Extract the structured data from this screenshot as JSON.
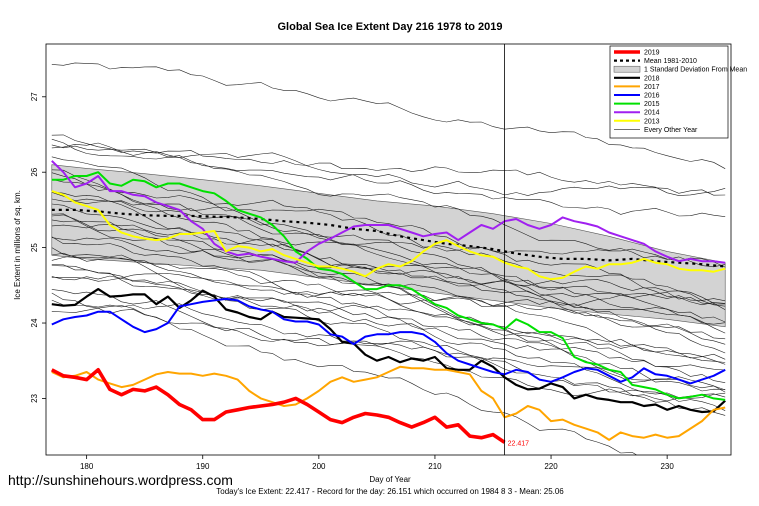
{
  "chart_data": {
    "type": "line",
    "title": "Global Sea Ice Extent Day 216 1978 to 2019",
    "xlabel": "Day of Year",
    "ylabel": "Ice Extent in millions of sq. km.",
    "xlim": [
      176.5,
      235.5
    ],
    "ylim": [
      22.25,
      27.7
    ],
    "x_ticks": [
      180,
      190,
      200,
      210,
      220,
      230
    ],
    "y_ticks": [
      23,
      24,
      25,
      26,
      27
    ],
    "vline_x": 216,
    "annotation": {
      "text": "22.417",
      "x": 216,
      "y": 22.417
    },
    "legend_position": "top-right",
    "band": {
      "name": "1 Standard Deviation From Mean",
      "color": "#d3d3d3",
      "x": [
        177,
        180,
        185,
        190,
        195,
        200,
        205,
        210,
        215,
        220,
        225,
        230,
        235
      ],
      "upper": [
        26.1,
        26.05,
        25.98,
        25.9,
        25.82,
        25.72,
        25.62,
        25.55,
        25.45,
        25.32,
        25.15,
        24.95,
        24.8
      ],
      "lower": [
        24.9,
        24.85,
        24.8,
        24.75,
        24.7,
        24.6,
        24.5,
        24.4,
        24.3,
        24.2,
        24.12,
        24.05,
        23.95
      ]
    },
    "series": [
      {
        "name": "Mean 1981-2010",
        "color": "#000000",
        "dashed": true,
        "width": 2.2,
        "x": [
          177,
          179,
          181,
          183,
          185,
          187,
          189,
          191,
          193,
          195,
          197,
          199,
          201,
          203,
          205,
          207,
          209,
          211,
          213,
          215,
          217,
          219,
          221,
          223,
          225,
          227,
          229,
          231,
          233,
          235
        ],
        "values": [
          25.5,
          25.5,
          25.48,
          25.45,
          25.43,
          25.42,
          25.42,
          25.41,
          25.4,
          25.38,
          25.35,
          25.33,
          25.3,
          25.25,
          25.22,
          25.15,
          25.1,
          25.05,
          25.02,
          24.98,
          24.92,
          24.88,
          24.85,
          24.85,
          24.83,
          24.85,
          24.82,
          24.8,
          24.78,
          24.75
        ]
      },
      {
        "name": "2018",
        "color": "#000000",
        "width": 2.2,
        "x": [
          177,
          178,
          179,
          180,
          181,
          182,
          183,
          184,
          185,
          186,
          187,
          188,
          189,
          190,
          191,
          192,
          193,
          194,
          195,
          196,
          197,
          198,
          199,
          200,
          201,
          202,
          203,
          204,
          205,
          206,
          207,
          208,
          209,
          210,
          211,
          212,
          213,
          214,
          215,
          216,
          217,
          218,
          219,
          220,
          221,
          222,
          223,
          224,
          225,
          226,
          227,
          228,
          229,
          230,
          231,
          232,
          233,
          234,
          235
        ],
        "values": [
          24.25,
          24.23,
          24.24,
          24.35,
          24.45,
          24.35,
          24.36,
          24.38,
          24.38,
          24.25,
          24.35,
          24.2,
          24.3,
          24.43,
          24.35,
          24.18,
          24.14,
          24.08,
          24.05,
          24.15,
          24.08,
          24.07,
          24.06,
          24.05,
          23.92,
          23.75,
          23.73,
          23.58,
          23.5,
          23.55,
          23.48,
          23.53,
          23.5,
          23.55,
          23.4,
          23.38,
          23.38,
          23.5,
          23.42,
          23.28,
          23.18,
          23.12,
          23.13,
          23.2,
          23.15,
          23.0,
          23.05,
          23.0,
          22.98,
          22.95,
          22.95,
          22.9,
          22.92,
          22.85,
          22.9,
          22.85,
          22.82,
          22.83,
          22.97
        ]
      },
      {
        "name": "2017",
        "color": "#ffa500",
        "width": 2,
        "x": [
          177,
          178,
          179,
          180,
          181,
          182,
          183,
          184,
          185,
          186,
          187,
          188,
          189,
          190,
          191,
          192,
          193,
          194,
          195,
          196,
          197,
          198,
          199,
          200,
          201,
          202,
          203,
          204,
          205,
          206,
          207,
          208,
          209,
          210,
          211,
          212,
          213,
          214,
          215,
          216,
          217,
          218,
          219,
          220,
          221,
          222,
          223,
          224,
          225,
          226,
          227,
          228,
          229,
          230,
          231,
          232,
          233,
          234,
          235
        ],
        "values": [
          23.35,
          23.28,
          23.3,
          23.35,
          23.25,
          23.2,
          23.15,
          23.18,
          23.25,
          23.32,
          23.35,
          23.33,
          23.33,
          23.3,
          23.33,
          23.3,
          23.25,
          23.1,
          23.0,
          22.95,
          22.9,
          22.92,
          23.0,
          23.1,
          23.22,
          23.28,
          23.22,
          23.25,
          23.28,
          23.35,
          23.42,
          23.4,
          23.4,
          23.38,
          23.38,
          23.35,
          23.32,
          23.1,
          23.0,
          22.75,
          22.8,
          22.9,
          22.85,
          22.7,
          22.72,
          22.65,
          22.6,
          22.55,
          22.45,
          22.55,
          22.5,
          22.48,
          22.52,
          22.48,
          22.5,
          22.6,
          22.7,
          22.85,
          22.88
        ]
      },
      {
        "name": "2016",
        "color": "#0000ff",
        "width": 2,
        "x": [
          177,
          178,
          179,
          180,
          181,
          182,
          183,
          184,
          185,
          186,
          187,
          188,
          189,
          190,
          191,
          192,
          193,
          194,
          195,
          196,
          197,
          198,
          199,
          200,
          201,
          202,
          203,
          204,
          205,
          206,
          207,
          208,
          209,
          210,
          211,
          212,
          213,
          214,
          215,
          216,
          217,
          218,
          219,
          220,
          221,
          222,
          223,
          224,
          225,
          226,
          227,
          228,
          229,
          230,
          231,
          232,
          233,
          234,
          235
        ],
        "values": [
          23.98,
          24.05,
          24.08,
          24.1,
          24.15,
          24.15,
          24.05,
          23.95,
          23.88,
          23.92,
          24.0,
          24.22,
          24.25,
          24.28,
          24.3,
          24.32,
          24.3,
          24.22,
          24.18,
          24.15,
          24.05,
          24.02,
          24.02,
          23.98,
          23.85,
          23.82,
          23.72,
          23.82,
          23.85,
          23.85,
          23.88,
          23.88,
          23.85,
          23.75,
          23.6,
          23.5,
          23.45,
          23.4,
          23.35,
          23.32,
          23.38,
          23.35,
          23.25,
          23.22,
          23.28,
          23.35,
          23.4,
          23.38,
          23.3,
          23.22,
          23.28,
          23.4,
          23.32,
          23.3,
          23.25,
          23.2,
          23.25,
          23.3,
          23.38
        ]
      },
      {
        "name": "2015",
        "color": "#00e000",
        "width": 2,
        "x": [
          177,
          178,
          179,
          180,
          181,
          182,
          183,
          184,
          185,
          186,
          187,
          188,
          189,
          190,
          191,
          192,
          193,
          194,
          195,
          196,
          197,
          198,
          199,
          200,
          201,
          202,
          203,
          204,
          205,
          206,
          207,
          208,
          209,
          210,
          211,
          212,
          213,
          214,
          215,
          216,
          217,
          218,
          219,
          220,
          221,
          222,
          223,
          224,
          225,
          226,
          227,
          228,
          229,
          230,
          231,
          232,
          233,
          234,
          235
        ],
        "values": [
          25.9,
          25.9,
          25.95,
          25.95,
          26.0,
          25.85,
          25.82,
          25.9,
          25.88,
          25.8,
          25.85,
          25.85,
          25.8,
          25.75,
          25.72,
          25.62,
          25.5,
          25.45,
          25.4,
          25.3,
          25.15,
          24.95,
          24.85,
          24.72,
          24.7,
          24.65,
          24.55,
          24.45,
          24.45,
          24.5,
          24.5,
          24.45,
          24.35,
          24.25,
          24.2,
          24.1,
          24.05,
          24.0,
          23.98,
          23.92,
          24.05,
          23.98,
          23.88,
          23.88,
          23.8,
          23.55,
          23.48,
          23.45,
          23.38,
          23.35,
          23.18,
          23.15,
          23.12,
          23.05,
          23.0,
          23.02,
          23.05,
          23.0,
          22.98
        ]
      },
      {
        "name": "2014",
        "color": "#a020f0",
        "width": 2,
        "x": [
          177,
          178,
          179,
          180,
          181,
          182,
          183,
          184,
          185,
          186,
          187,
          188,
          189,
          190,
          191,
          192,
          193,
          194,
          195,
          196,
          197,
          198,
          199,
          200,
          201,
          202,
          203,
          204,
          205,
          206,
          207,
          208,
          209,
          210,
          211,
          212,
          213,
          214,
          215,
          216,
          217,
          218,
          219,
          220,
          221,
          222,
          223,
          224,
          225,
          226,
          227,
          228,
          229,
          230,
          231,
          232,
          233,
          234,
          235
        ],
        "values": [
          26.15,
          26.0,
          25.8,
          25.85,
          25.95,
          25.75,
          25.75,
          25.7,
          25.68,
          25.6,
          25.55,
          25.5,
          25.35,
          25.25,
          25.05,
          24.95,
          24.9,
          24.92,
          24.88,
          24.85,
          24.82,
          24.8,
          24.95,
          25.05,
          25.12,
          25.2,
          25.28,
          25.3,
          25.3,
          25.3,
          25.25,
          25.2,
          25.15,
          25.18,
          25.2,
          25.1,
          25.2,
          25.3,
          25.25,
          25.35,
          25.38,
          25.3,
          25.25,
          25.3,
          25.4,
          25.35,
          25.32,
          25.28,
          25.2,
          25.15,
          25.1,
          25.05,
          24.95,
          24.88,
          24.82,
          24.85,
          24.82,
          24.82,
          24.8
        ]
      },
      {
        "name": "2013",
        "color": "#ffff00",
        "width": 2,
        "x": [
          177,
          178,
          179,
          180,
          181,
          182,
          183,
          184,
          185,
          186,
          187,
          188,
          189,
          190,
          191,
          192,
          193,
          194,
          195,
          196,
          197,
          198,
          199,
          200,
          201,
          202,
          203,
          204,
          205,
          206,
          207,
          208,
          209,
          210,
          211,
          212,
          213,
          214,
          215,
          216,
          217,
          218,
          219,
          220,
          221,
          222,
          223,
          224,
          225,
          226,
          227,
          228,
          229,
          230,
          231,
          232,
          233,
          234,
          235
        ],
        "values": [
          25.75,
          25.7,
          25.6,
          25.55,
          25.5,
          25.3,
          25.2,
          25.15,
          25.12,
          25.1,
          25.12,
          25.18,
          25.18,
          25.2,
          25.22,
          24.95,
          25.02,
          25.0,
          24.95,
          24.98,
          24.9,
          24.85,
          24.8,
          24.75,
          24.75,
          24.72,
          24.68,
          24.62,
          24.72,
          24.78,
          24.75,
          24.82,
          24.95,
          25.05,
          25.1,
          25.02,
          24.95,
          24.9,
          24.88,
          24.8,
          24.75,
          24.72,
          24.62,
          24.58,
          24.6,
          24.68,
          24.75,
          24.72,
          24.78,
          24.78,
          24.8,
          24.85,
          24.8,
          24.78,
          24.72,
          24.7,
          24.7,
          24.68,
          24.72
        ]
      },
      {
        "name": "2019",
        "color": "#ff0000",
        "width": 3.6,
        "x": [
          177,
          178,
          179,
          180,
          181,
          182,
          183,
          184,
          185,
          186,
          187,
          188,
          189,
          190,
          191,
          192,
          193,
          194,
          195,
          196,
          197,
          198,
          199,
          200,
          201,
          202,
          203,
          204,
          205,
          206,
          207,
          208,
          209,
          210,
          211,
          212,
          213,
          214,
          215,
          216
        ],
        "values": [
          23.38,
          23.3,
          23.28,
          23.25,
          23.38,
          23.12,
          23.05,
          23.12,
          23.1,
          23.15,
          23.05,
          22.92,
          22.85,
          22.72,
          22.72,
          22.82,
          22.85,
          22.88,
          22.9,
          22.92,
          22.95,
          23.0,
          22.92,
          22.82,
          22.72,
          22.68,
          22.75,
          22.8,
          22.78,
          22.75,
          22.68,
          22.62,
          22.68,
          22.75,
          22.62,
          22.65,
          22.5,
          22.48,
          22.52,
          22.417
        ]
      }
    ],
    "background_series": {
      "name": "Every Other Year",
      "color": "#222222"
    },
    "legend_items": [
      {
        "label": "2019",
        "color": "#ff0000",
        "kind": "line",
        "width": 3.5,
        "dashed": false
      },
      {
        "label": "Mean 1981-2010",
        "color": "#000000",
        "kind": "line",
        "width": 2.2,
        "dashed": true
      },
      {
        "label": "1 Standard Deviation From Mean",
        "color": "#d3d3d3",
        "kind": "box",
        "width": 1,
        "dashed": false
      },
      {
        "label": "2018",
        "color": "#000000",
        "kind": "line",
        "width": 2.2,
        "dashed": false
      },
      {
        "label": "2017",
        "color": "#ffa500",
        "kind": "line",
        "width": 2,
        "dashed": false
      },
      {
        "label": "2016",
        "color": "#0000ff",
        "kind": "line",
        "width": 2,
        "dashed": false
      },
      {
        "label": "2015",
        "color": "#00e000",
        "kind": "line",
        "width": 2,
        "dashed": false
      },
      {
        "label": "2014",
        "color": "#a020f0",
        "kind": "line",
        "width": 2,
        "dashed": false
      },
      {
        "label": "2013",
        "color": "#ffff00",
        "kind": "line",
        "width": 2,
        "dashed": false
      },
      {
        "label": "Every Other Year",
        "color": "#444444",
        "kind": "line",
        "width": 0.8,
        "dashed": false
      }
    ]
  },
  "footer": {
    "summary": "Today's Ice Extent: 22.417  - Record for the day: 26.151 which occurred on 1984 8 3  - Mean: 25.06",
    "credit": "http://sunshinehours.wordpress.com"
  }
}
